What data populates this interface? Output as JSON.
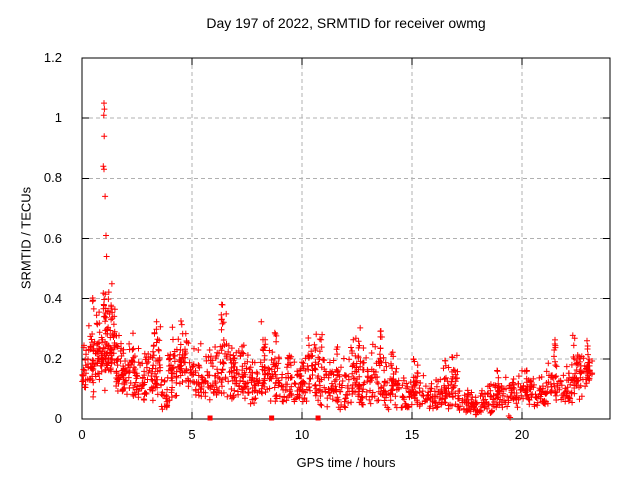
{
  "chart_data": {
    "type": "scatter",
    "title": "Day 197 of 2022, SRMTID for receiver owmg",
    "xlabel": "GPS time / hours",
    "ylabel": "SRMTID / TECUs",
    "xlim": [
      0,
      24
    ],
    "ylim": [
      0,
      1.2
    ],
    "xticks": [
      0,
      5,
      10,
      15,
      20
    ],
    "xtick_labels": [
      "0",
      "5",
      "10",
      "15",
      "20"
    ],
    "yticks": [
      0,
      0.2,
      0.4,
      0.6,
      0.8,
      1,
      1.2
    ],
    "ytick_labels": [
      "0",
      "0.2",
      "0.4",
      "0.6",
      "0.8",
      "1",
      "1.2"
    ],
    "grid": {
      "show": true,
      "color": "#b0b0b0"
    },
    "frame_color": "#000000",
    "background": "#ffffff",
    "seed": 197,
    "series": [
      {
        "name": "srmtid",
        "marker": "plus",
        "color": "#ff0000",
        "band_bins": [
          [
            0.0,
            0.3,
            0.09,
            0.26,
            26
          ],
          [
            0.3,
            0.6,
            0.1,
            0.4,
            34
          ],
          [
            0.6,
            0.9,
            0.12,
            0.38,
            34
          ],
          [
            0.9,
            1.2,
            0.14,
            0.45,
            40
          ],
          [
            1.2,
            1.5,
            0.12,
            0.44,
            36
          ],
          [
            1.5,
            1.8,
            0.09,
            0.32,
            30
          ],
          [
            1.8,
            2.1,
            0.07,
            0.26,
            28
          ],
          [
            2.1,
            2.5,
            0.08,
            0.27,
            30
          ],
          [
            2.5,
            3.0,
            0.05,
            0.24,
            34
          ],
          [
            3.0,
            3.3,
            0.06,
            0.3,
            26
          ],
          [
            3.3,
            3.6,
            0.07,
            0.35,
            26
          ],
          [
            3.6,
            3.9,
            0.03,
            0.17,
            22
          ],
          [
            3.9,
            4.3,
            0.06,
            0.34,
            30
          ],
          [
            4.3,
            4.9,
            0.1,
            0.32,
            40
          ],
          [
            4.9,
            5.4,
            0.07,
            0.27,
            34
          ],
          [
            5.4,
            5.9,
            0.05,
            0.24,
            32
          ],
          [
            5.9,
            6.2,
            0.06,
            0.3,
            22
          ],
          [
            6.2,
            6.6,
            0.07,
            0.4,
            28
          ],
          [
            6.6,
            7.1,
            0.05,
            0.29,
            34
          ],
          [
            7.1,
            7.6,
            0.06,
            0.27,
            34
          ],
          [
            7.6,
            8.1,
            0.05,
            0.26,
            34
          ],
          [
            8.1,
            8.5,
            0.07,
            0.35,
            28
          ],
          [
            8.5,
            9.0,
            0.05,
            0.29,
            34
          ],
          [
            9.0,
            9.5,
            0.05,
            0.24,
            32
          ],
          [
            9.5,
            10.0,
            0.04,
            0.21,
            32
          ],
          [
            10.0,
            10.6,
            0.05,
            0.28,
            38
          ],
          [
            10.6,
            11.1,
            0.04,
            0.31,
            34
          ],
          [
            11.1,
            11.6,
            0.04,
            0.24,
            32
          ],
          [
            11.6,
            12.1,
            0.03,
            0.21,
            32
          ],
          [
            12.1,
            12.7,
            0.04,
            0.3,
            38
          ],
          [
            12.7,
            13.2,
            0.04,
            0.27,
            34
          ],
          [
            13.2,
            13.8,
            0.04,
            0.29,
            38
          ],
          [
            13.8,
            14.4,
            0.03,
            0.22,
            36
          ],
          [
            14.4,
            15.0,
            0.03,
            0.18,
            34
          ],
          [
            15.0,
            15.6,
            0.03,
            0.19,
            34
          ],
          [
            15.6,
            16.2,
            0.03,
            0.15,
            34
          ],
          [
            16.2,
            16.7,
            0.03,
            0.19,
            30
          ],
          [
            16.7,
            17.1,
            0.03,
            0.23,
            24
          ],
          [
            17.1,
            17.6,
            0.02,
            0.11,
            30
          ],
          [
            17.6,
            18.1,
            0.01,
            0.1,
            30
          ],
          [
            18.1,
            18.7,
            0.02,
            0.13,
            34
          ],
          [
            18.7,
            19.3,
            0.03,
            0.15,
            34
          ],
          [
            19.3,
            19.9,
            0.03,
            0.16,
            34
          ],
          [
            19.9,
            20.5,
            0.04,
            0.19,
            36
          ],
          [
            20.5,
            21.1,
            0.04,
            0.17,
            36
          ],
          [
            21.1,
            21.7,
            0.05,
            0.23,
            36
          ],
          [
            21.7,
            22.3,
            0.05,
            0.21,
            36
          ],
          [
            22.3,
            22.8,
            0.06,
            0.27,
            34
          ],
          [
            22.8,
            23.2,
            0.1,
            0.27,
            28
          ]
        ],
        "spikes": [
          [
            0.5,
            0.43
          ],
          [
            1.05,
            0.46
          ],
          [
            1.35,
            0.47
          ],
          [
            2.3,
            0.29
          ],
          [
            3.4,
            0.36
          ],
          [
            4.1,
            0.38
          ],
          [
            4.5,
            0.34
          ],
          [
            6.35,
            0.42
          ],
          [
            6.9,
            0.31
          ],
          [
            7.3,
            0.29
          ],
          [
            8.3,
            0.37
          ],
          [
            8.8,
            0.31
          ],
          [
            10.3,
            0.3
          ],
          [
            10.85,
            0.33
          ],
          [
            11.6,
            0.26
          ],
          [
            12.3,
            0.3
          ],
          [
            12.6,
            0.31
          ],
          [
            13.6,
            0.3
          ],
          [
            14.1,
            0.24
          ],
          [
            15.1,
            0.22
          ],
          [
            16.5,
            0.21
          ],
          [
            16.85,
            0.24
          ],
          [
            18.9,
            0.17
          ],
          [
            20.2,
            0.2
          ],
          [
            21.5,
            0.27
          ],
          [
            22.35,
            0.28
          ],
          [
            23.0,
            0.26
          ]
        ],
        "outlier_points": [
          [
            1.0,
            1.05
          ],
          [
            1.02,
            1.03
          ],
          [
            0.99,
            1.01
          ],
          [
            1.01,
            0.94
          ],
          [
            0.97,
            0.84
          ],
          [
            1.0,
            0.83
          ],
          [
            1.05,
            0.74
          ],
          [
            1.09,
            0.61
          ],
          [
            1.12,
            0.54
          ],
          [
            19.4,
            0.01
          ],
          [
            19.46,
            0.005
          ]
        ]
      },
      {
        "name": "events",
        "marker": "square",
        "color": "#ff0000",
        "points": [
          [
            5.82,
            0
          ],
          [
            8.62,
            0
          ],
          [
            10.73,
            0
          ]
        ]
      }
    ]
  }
}
